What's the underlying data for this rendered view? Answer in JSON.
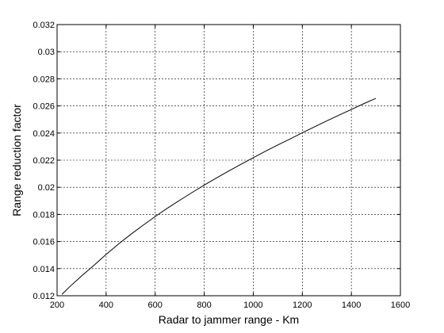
{
  "chart_data": {
    "type": "line",
    "title": "",
    "xlabel": "Radar to jammer range - Km",
    "ylabel": "Range reduction factor",
    "xlim": [
      200,
      1600
    ],
    "ylim": [
      0.012,
      0.032
    ],
    "grid": true,
    "grid_style": "dashed",
    "x_ticks": [
      200,
      400,
      600,
      800,
      1000,
      1200,
      1400,
      1600
    ],
    "x_tick_labels": [
      "200",
      "400",
      "600",
      "800",
      "1000",
      "1200",
      "1400",
      "1600"
    ],
    "y_ticks": [
      0.012,
      0.014,
      0.016,
      0.018,
      0.02,
      0.022,
      0.024,
      0.026,
      0.028,
      0.03,
      0.032
    ],
    "y_tick_labels": [
      "0.012",
      "0.014",
      "0.016",
      "0.018",
      "0.02",
      "0.022",
      "0.024",
      "0.026",
      "0.028",
      "0.03",
      "0.032"
    ],
    "series": [
      {
        "color": "#000000",
        "x": [
          220,
          250,
          300,
          350,
          400,
          450,
          500,
          550,
          600,
          650,
          700,
          750,
          800,
          850,
          900,
          950,
          1000,
          1050,
          1100,
          1150,
          1200,
          1250,
          1300,
          1350,
          1400,
          1450,
          1500
        ],
        "y": [
          0.0121,
          0.01264,
          0.01346,
          0.01424,
          0.01505,
          0.01581,
          0.01652,
          0.01719,
          0.01784,
          0.01846,
          0.01904,
          0.01961,
          0.02016,
          0.02069,
          0.0212,
          0.0217,
          0.02218,
          0.02266,
          0.02312,
          0.02356,
          0.02402,
          0.02446,
          0.0249,
          0.02532,
          0.02574,
          0.02616,
          0.02656
        ]
      }
    ]
  }
}
